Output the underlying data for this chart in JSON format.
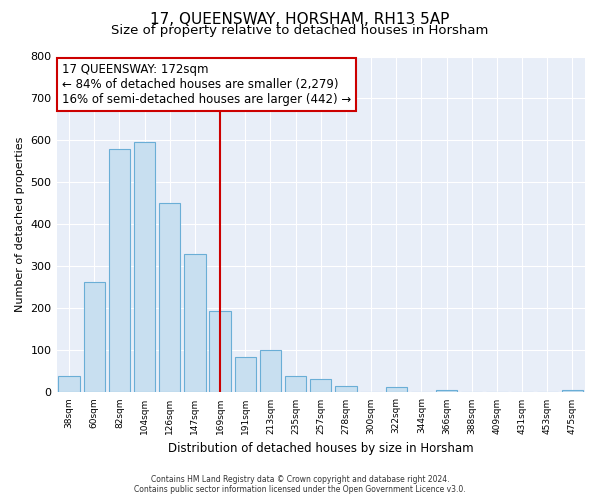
{
  "title": "17, QUEENSWAY, HORSHAM, RH13 5AP",
  "subtitle": "Size of property relative to detached houses in Horsham",
  "xlabel": "Distribution of detached houses by size in Horsham",
  "ylabel": "Number of detached properties",
  "bar_labels": [
    "38sqm",
    "60sqm",
    "82sqm",
    "104sqm",
    "126sqm",
    "147sqm",
    "169sqm",
    "191sqm",
    "213sqm",
    "235sqm",
    "257sqm",
    "278sqm",
    "300sqm",
    "322sqm",
    "344sqm",
    "366sqm",
    "388sqm",
    "409sqm",
    "431sqm",
    "453sqm",
    "475sqm"
  ],
  "bar_values": [
    40,
    262,
    580,
    596,
    450,
    330,
    193,
    85,
    100,
    38,
    32,
    15,
    0,
    12,
    0,
    5,
    0,
    0,
    0,
    0,
    5
  ],
  "bar_color": "#c8dff0",
  "bar_edge_color": "#6aaed6",
  "highlight_bar_index": 6,
  "highlight_line_color": "#cc0000",
  "highlight_box_line1": "17 QUEENSWAY: 172sqm",
  "highlight_box_line2": "← 84% of detached houses are smaller (2,279)",
  "highlight_box_line3": "16% of semi-detached houses are larger (442) →",
  "ylim": [
    0,
    800
  ],
  "yticks": [
    0,
    100,
    200,
    300,
    400,
    500,
    600,
    700,
    800
  ],
  "background_color": "#ffffff",
  "plot_bg_color": "#e8eef8",
  "grid_color": "#ffffff",
  "footer_line1": "Contains HM Land Registry data © Crown copyright and database right 2024.",
  "footer_line2": "Contains public sector information licensed under the Open Government Licence v3.0.",
  "title_fontsize": 11,
  "subtitle_fontsize": 9.5,
  "annotation_fontsize": 8.5,
  "ylabel_fontsize": 8,
  "xlabel_fontsize": 8.5
}
